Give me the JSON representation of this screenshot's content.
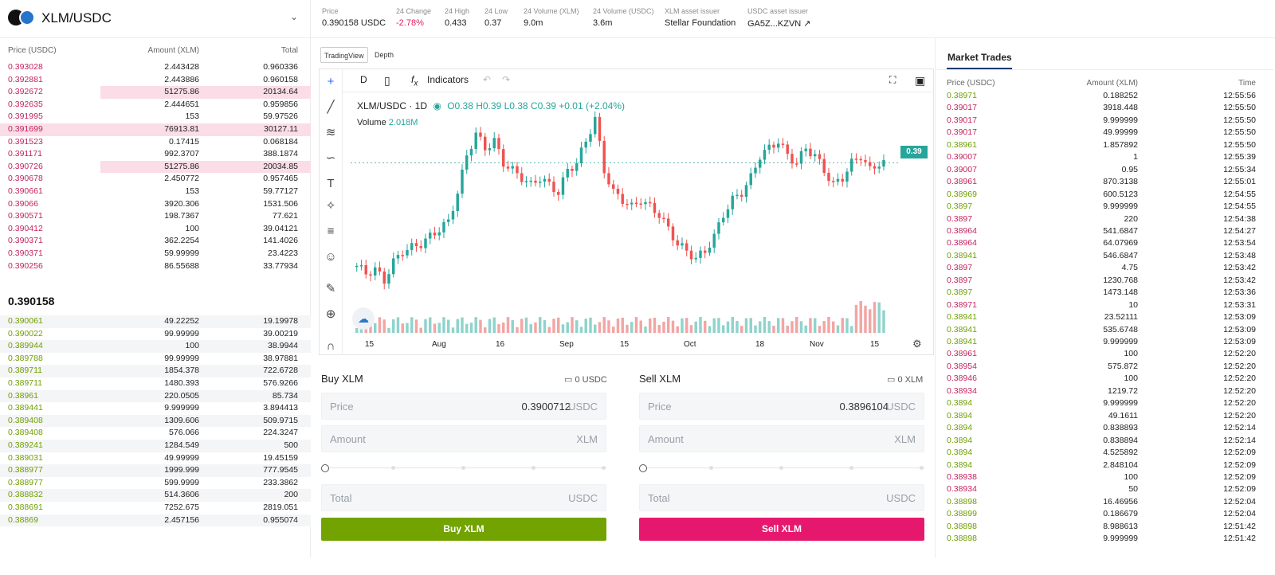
{
  "header": {
    "pair": "XLM/USDC",
    "stats": [
      {
        "label": "Price",
        "value": "0.390158 USDC"
      },
      {
        "label": "24 Change",
        "value": "-2.78%"
      },
      {
        "label": "24 High",
        "value": "0.433"
      },
      {
        "label": "24 Low",
        "value": "0.37"
      },
      {
        "label": "24 Volume (XLM)",
        "value": "9.0m"
      },
      {
        "label": "24 Volume (USDC)",
        "value": "3.6m"
      },
      {
        "label": "XLM asset issuer",
        "value": "Stellar Foundation"
      },
      {
        "label": "USDC asset issuer",
        "value": "GA5Z...KZVN ↗"
      }
    ]
  },
  "orderbook": {
    "headers": [
      "Price (USDC)",
      "Amount (XLM)",
      "Total"
    ],
    "asks": [
      [
        "0.393028",
        "2.443428",
        "0.960336"
      ],
      [
        "0.392881",
        "2.443886",
        "0.960158"
      ],
      [
        "0.392672",
        "51275.86",
        "20134.64"
      ],
      [
        "0.392635",
        "2.444651",
        "0.959856"
      ],
      [
        "0.391995",
        "153",
        "59.97526"
      ],
      [
        "0.391699",
        "76913.81",
        "30127.11"
      ],
      [
        "0.391523",
        "0.17415",
        "0.068184"
      ],
      [
        "0.391171",
        "992.3707",
        "388.1874"
      ],
      [
        "0.390726",
        "51275.86",
        "20034.85"
      ],
      [
        "0.390678",
        "2.450772",
        "0.957465"
      ],
      [
        "0.390661",
        "153",
        "59.77127"
      ],
      [
        "0.39066",
        "3920.306",
        "1531.506"
      ],
      [
        "0.390571",
        "198.7367",
        "77.621"
      ],
      [
        "0.390412",
        "100",
        "39.04121"
      ],
      [
        "0.390371",
        "362.2254",
        "141.4026"
      ],
      [
        "0.390371",
        "59.99999",
        "23.4223"
      ],
      [
        "0.390256",
        "86.55688",
        "33.77934"
      ]
    ],
    "mid_price": "0.390158",
    "bids": [
      [
        "0.390061",
        "49.22252",
        "19.19978"
      ],
      [
        "0.390022",
        "99.99999",
        "39.00219"
      ],
      [
        "0.389944",
        "100",
        "38.9944"
      ],
      [
        "0.389788",
        "99.99999",
        "38.97881"
      ],
      [
        "0.389711",
        "1854.378",
        "722.6728"
      ],
      [
        "0.389711",
        "1480.393",
        "576.9266"
      ],
      [
        "0.38961",
        "220.0505",
        "85.734"
      ],
      [
        "0.389441",
        "9.999999",
        "3.894413"
      ],
      [
        "0.389408",
        "1309.606",
        "509.9715"
      ],
      [
        "0.389408",
        "576.066",
        "224.3247"
      ],
      [
        "0.389241",
        "1284.549",
        "500"
      ],
      [
        "0.389031",
        "49.99999",
        "19.45159"
      ],
      [
        "0.388977",
        "1999.999",
        "777.9545"
      ],
      [
        "0.388977",
        "599.9999",
        "233.3862"
      ],
      [
        "0.388832",
        "514.3606",
        "200"
      ],
      [
        "0.388691",
        "7252.675",
        "2819.051"
      ],
      [
        "0.38869",
        "2.457156",
        "0.955074"
      ]
    ]
  },
  "chart": {
    "tabs": [
      "TradingView",
      "Depth"
    ],
    "interval": "D",
    "indicators_label": "Indicators",
    "legend_symbol": "XLM/USDC · 1D",
    "ohlc": "O0.38 H0.39 L0.38 C0.39 +0.01 (+2.04%)",
    "volume_label": "Volume",
    "volume_value": "2.018M",
    "last_price_tag": "0.39",
    "x_ticks": [
      "15",
      "Aug",
      "16",
      "Sep",
      "15",
      "Oct",
      "18",
      "Nov",
      "15"
    ]
  },
  "chart_data": {
    "type": "candlestick",
    "title": "XLM/USDC · 1D",
    "x_ticks": [
      "15",
      "Aug",
      "16",
      "Sep",
      "15",
      "Oct",
      "18",
      "Nov",
      "15"
    ],
    "last": {
      "open": 0.38,
      "high": 0.39,
      "low": 0.38,
      "close": 0.39,
      "change": 0.01,
      "change_pct": 2.04
    },
    "volume_last": "2.018M",
    "closes": [
      0.25,
      0.24,
      0.245,
      0.23,
      0.255,
      0.27,
      0.275,
      0.28,
      0.29,
      0.3,
      0.31,
      0.35,
      0.4,
      0.43,
      0.41,
      0.42,
      0.39,
      0.38,
      0.37,
      0.36,
      0.37,
      0.36,
      0.35,
      0.38,
      0.39,
      0.42,
      0.45,
      0.38,
      0.35,
      0.34,
      0.33,
      0.34,
      0.33,
      0.32,
      0.3,
      0.28,
      0.27,
      0.26,
      0.27,
      0.29,
      0.32,
      0.34,
      0.35,
      0.37,
      0.4,
      0.41,
      0.42,
      0.4,
      0.39,
      0.41,
      0.4,
      0.38,
      0.36,
      0.37,
      0.39,
      0.4,
      0.38,
      0.39
    ]
  },
  "buy_form": {
    "title": "Buy XLM",
    "balance": "0 USDC",
    "price_label": "Price",
    "price_value": "0.3900712",
    "price_unit": "USDC",
    "amount_label": "Amount",
    "amount_unit": "XLM",
    "total_label": "Total",
    "total_unit": "USDC",
    "button": "Buy XLM"
  },
  "sell_form": {
    "title": "Sell XLM",
    "balance": "0 XLM",
    "price_label": "Price",
    "price_value": "0.3896104",
    "price_unit": "USDC",
    "amount_label": "Amount",
    "amount_unit": "XLM",
    "total_label": "Total",
    "total_unit": "USDC",
    "button": "Sell XLM"
  },
  "trades": {
    "title": "Market Trades",
    "headers": [
      "Price (USDC)",
      "Amount (XLM)",
      "Time"
    ],
    "rows": [
      [
        "0.38971",
        "0.188252",
        "12:55:56",
        "buy"
      ],
      [
        "0.39017",
        "3918.448",
        "12:55:50",
        "sell"
      ],
      [
        "0.39017",
        "9.999999",
        "12:55:50",
        "sell"
      ],
      [
        "0.39017",
        "49.99999",
        "12:55:50",
        "sell"
      ],
      [
        "0.38961",
        "1.857892",
        "12:55:50",
        "buy"
      ],
      [
        "0.39007",
        "1",
        "12:55:39",
        "sell"
      ],
      [
        "0.39007",
        "0.95",
        "12:55:34",
        "sell"
      ],
      [
        "0.38961",
        "870.3138",
        "12:55:01",
        "sell"
      ],
      [
        "0.38969",
        "600.5123",
        "12:54:55",
        "buy"
      ],
      [
        "0.3897",
        "9.999999",
        "12:54:55",
        "buy"
      ],
      [
        "0.3897",
        "220",
        "12:54:38",
        "sell"
      ],
      [
        "0.38964",
        "541.6847",
        "12:54:27",
        "sell"
      ],
      [
        "0.38964",
        "64.07969",
        "12:53:54",
        "sell"
      ],
      [
        "0.38941",
        "546.6847",
        "12:53:48",
        "buy"
      ],
      [
        "0.3897",
        "4.75",
        "12:53:42",
        "sell"
      ],
      [
        "0.3897",
        "1230.768",
        "12:53:42",
        "sell"
      ],
      [
        "0.3897",
        "1473.148",
        "12:53:36",
        "buy"
      ],
      [
        "0.38971",
        "10",
        "12:53:31",
        "sell"
      ],
      [
        "0.38941",
        "23.52111",
        "12:53:09",
        "buy"
      ],
      [
        "0.38941",
        "535.6748",
        "12:53:09",
        "buy"
      ],
      [
        "0.38941",
        "9.999999",
        "12:53:09",
        "buy"
      ],
      [
        "0.38961",
        "100",
        "12:52:20",
        "sell"
      ],
      [
        "0.38954",
        "575.872",
        "12:52:20",
        "sell"
      ],
      [
        "0.38946",
        "100",
        "12:52:20",
        "sell"
      ],
      [
        "0.38934",
        "1219.72",
        "12:52:20",
        "sell"
      ],
      [
        "0.3894",
        "9.999999",
        "12:52:20",
        "buy"
      ],
      [
        "0.3894",
        "49.1611",
        "12:52:20",
        "buy"
      ],
      [
        "0.3894",
        "0.838893",
        "12:52:14",
        "buy"
      ],
      [
        "0.3894",
        "0.838894",
        "12:52:14",
        "buy"
      ],
      [
        "0.3894",
        "4.525892",
        "12:52:09",
        "buy"
      ],
      [
        "0.3894",
        "2.848104",
        "12:52:09",
        "buy"
      ],
      [
        "0.38938",
        "100",
        "12:52:09",
        "sell"
      ],
      [
        "0.38934",
        "50",
        "12:52:09",
        "sell"
      ],
      [
        "0.38898",
        "16.46956",
        "12:52:04",
        "buy"
      ],
      [
        "0.38899",
        "0.186679",
        "12:52:04",
        "buy"
      ],
      [
        "0.38898",
        "8.988613",
        "12:51:42",
        "buy"
      ],
      [
        "0.38898",
        "9.999999",
        "12:51:42",
        "buy"
      ]
    ]
  },
  "colors": {
    "ask": "#c3245f",
    "bid": "#6f9e00",
    "up": "#26a69a",
    "down": "#ef5350",
    "buy_button": "#72a300",
    "sell_button": "#e6186e"
  }
}
